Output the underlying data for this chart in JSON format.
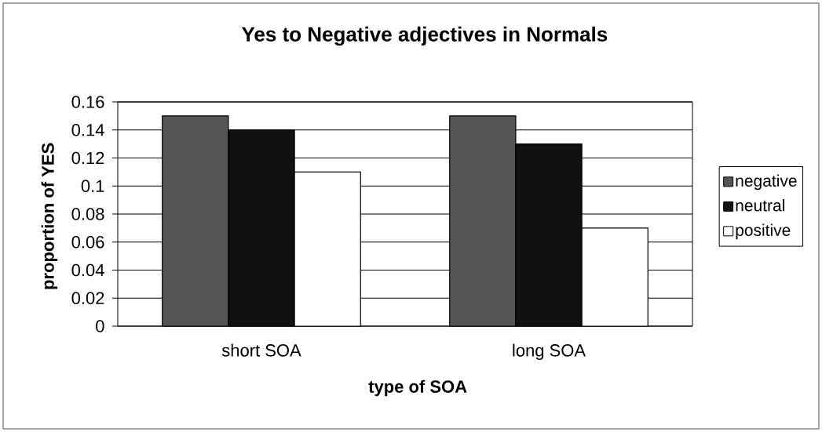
{
  "chart_data": {
    "type": "bar",
    "title": "Yes to Negative adjectives in Normals",
    "xlabel": "type of SOA",
    "ylabel": "proportion of YES",
    "categories": [
      "short SOA",
      "long SOA"
    ],
    "series": [
      {
        "name": "negative",
        "color": "#555555",
        "values": [
          0.15,
          0.15
        ]
      },
      {
        "name": "neutral",
        "color": "#111111",
        "values": [
          0.14,
          0.13
        ]
      },
      {
        "name": "positive",
        "color": "#ffffff",
        "values": [
          0.11,
          0.07
        ]
      }
    ],
    "ylim": [
      0,
      0.16
    ],
    "yticks": [
      0,
      0.02,
      0.04,
      0.06,
      0.08,
      0.1,
      0.12,
      0.14,
      0.16
    ],
    "grid": "y",
    "legend": "right"
  }
}
